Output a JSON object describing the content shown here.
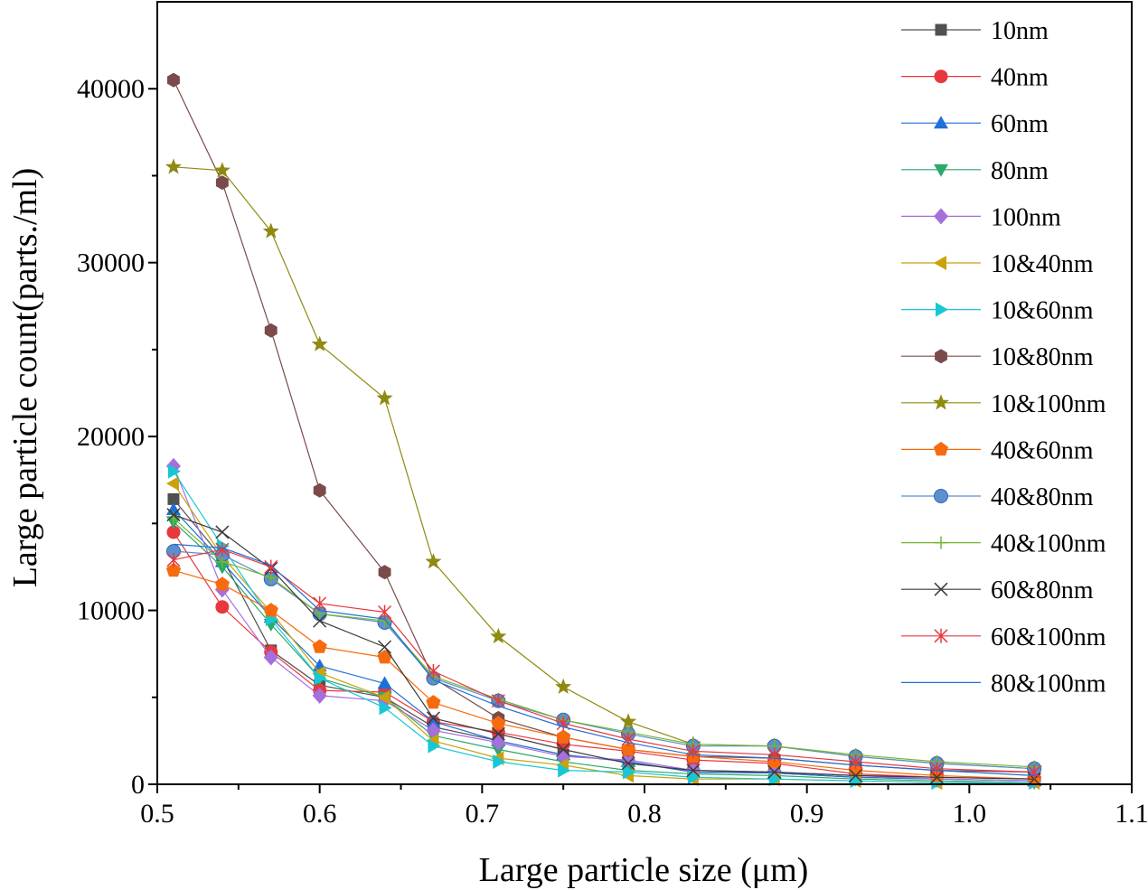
{
  "chart_data": {
    "type": "line",
    "xlabel": "Large particle size (μm)",
    "ylabel": "Large particle count(parts./ml)",
    "xlim": [
      0.5,
      1.1
    ],
    "ylim": [
      0,
      40000
    ],
    "xticks": [
      "0.5",
      "0.6",
      "0.7",
      "0.8",
      "0.9",
      "1.0",
      "1.1"
    ],
    "yticks": [
      "0",
      "10000",
      "20000",
      "30000",
      "40000"
    ],
    "legend_position": "top-right",
    "grid": false,
    "x": [
      0.51,
      0.54,
      0.57,
      0.6,
      0.64,
      0.67,
      0.71,
      0.75,
      0.79,
      0.83,
      0.88,
      0.93,
      0.98,
      1.04
    ],
    "series": [
      {
        "name": "10nm",
        "color": "#505050",
        "marker": "square",
        "values": [
          16400,
          13000,
          7700,
          5700,
          5000,
          3300,
          2500,
          1700,
          1300,
          700,
          650,
          400,
          300,
          200
        ]
      },
      {
        "name": "40nm",
        "color": "#e8383d",
        "marker": "circle",
        "values": [
          14500,
          10200,
          7600,
          5400,
          5300,
          3600,
          3000,
          2300,
          1900,
          1400,
          1200,
          600,
          400,
          300
        ]
      },
      {
        "name": "60nm",
        "color": "#1f6fd6",
        "marker": "triangle-up",
        "values": [
          15800,
          12800,
          9600,
          6800,
          5800,
          3600,
          2500,
          1700,
          1300,
          700,
          650,
          400,
          300,
          200
        ]
      },
      {
        "name": "80nm",
        "color": "#2ca86c",
        "marker": "triangle-down",
        "values": [
          15100,
          12500,
          9200,
          6100,
          5000,
          2800,
          2000,
          1300,
          800,
          600,
          500,
          300,
          200,
          100
        ]
      },
      {
        "name": "100nm",
        "color": "#a56fdc",
        "marker": "diamond",
        "values": [
          18300,
          11200,
          7300,
          5100,
          4800,
          3100,
          2400,
          1600,
          1400,
          800,
          700,
          500,
          300,
          200
        ]
      },
      {
        "name": "10&40nm",
        "color": "#c9a20e",
        "marker": "triangle-left",
        "values": [
          17300,
          13100,
          9900,
          6400,
          5000,
          2500,
          1500,
          1100,
          500,
          300,
          300,
          200,
          100,
          100
        ]
      },
      {
        "name": "10&60nm",
        "color": "#18c7d4",
        "marker": "triangle-right",
        "values": [
          18000,
          13700,
          9500,
          6100,
          4400,
          2200,
          1300,
          800,
          700,
          400,
          300,
          200,
          100,
          100
        ]
      },
      {
        "name": "10&80nm",
        "color": "#7b4a4a",
        "marker": "hexagon",
        "values": [
          40500,
          34600,
          26100,
          16900,
          12200,
          6100,
          3800,
          2700,
          2000,
          1600,
          1500,
          1100,
          800,
          700
        ]
      },
      {
        "name": "10&100nm",
        "color": "#8f8a10",
        "marker": "star",
        "values": [
          35500,
          35300,
          31800,
          25300,
          22200,
          12800,
          8500,
          5600,
          3600,
          2300,
          2200,
          1600,
          1200,
          900
        ]
      },
      {
        "name": "40&60nm",
        "color": "#f76b0f",
        "marker": "pentagon",
        "values": [
          12300,
          11500,
          10000,
          7900,
          7300,
          4700,
          3500,
          2700,
          2000,
          1600,
          1300,
          800,
          500,
          300
        ]
      },
      {
        "name": "40&80nm",
        "color": "#5b8fd1",
        "marker": "sphere",
        "values": [
          13400,
          13200,
          11800,
          9800,
          9300,
          6100,
          4800,
          3700,
          2900,
          2200,
          2200,
          1600,
          1200,
          900
        ]
      },
      {
        "name": "40&100nm",
        "color": "#74b72e",
        "marker": "plus",
        "values": [
          15300,
          12800,
          11900,
          9800,
          9400,
          6200,
          4900,
          3700,
          3000,
          2300,
          2200,
          1700,
          1300,
          1000
        ]
      },
      {
        "name": "60&80nm",
        "color": "#3a3a3a",
        "marker": "x",
        "values": [
          15500,
          14500,
          12400,
          9400,
          7900,
          3800,
          2900,
          2000,
          1200,
          800,
          700,
          500,
          400,
          300
        ]
      },
      {
        "name": "60&100nm",
        "color": "#e8383d",
        "marker": "asterisk",
        "values": [
          12900,
          13500,
          12500,
          10400,
          9900,
          6500,
          4800,
          3500,
          2600,
          1900,
          1700,
          1300,
          900,
          700
        ]
      },
      {
        "name": "80&100nm",
        "color": "#1f6fd6",
        "marker": "none",
        "values": [
          13800,
          13600,
          12600,
          10000,
          9500,
          6000,
          4500,
          3300,
          2400,
          1700,
          1500,
          1100,
          800,
          500
        ]
      }
    ]
  }
}
